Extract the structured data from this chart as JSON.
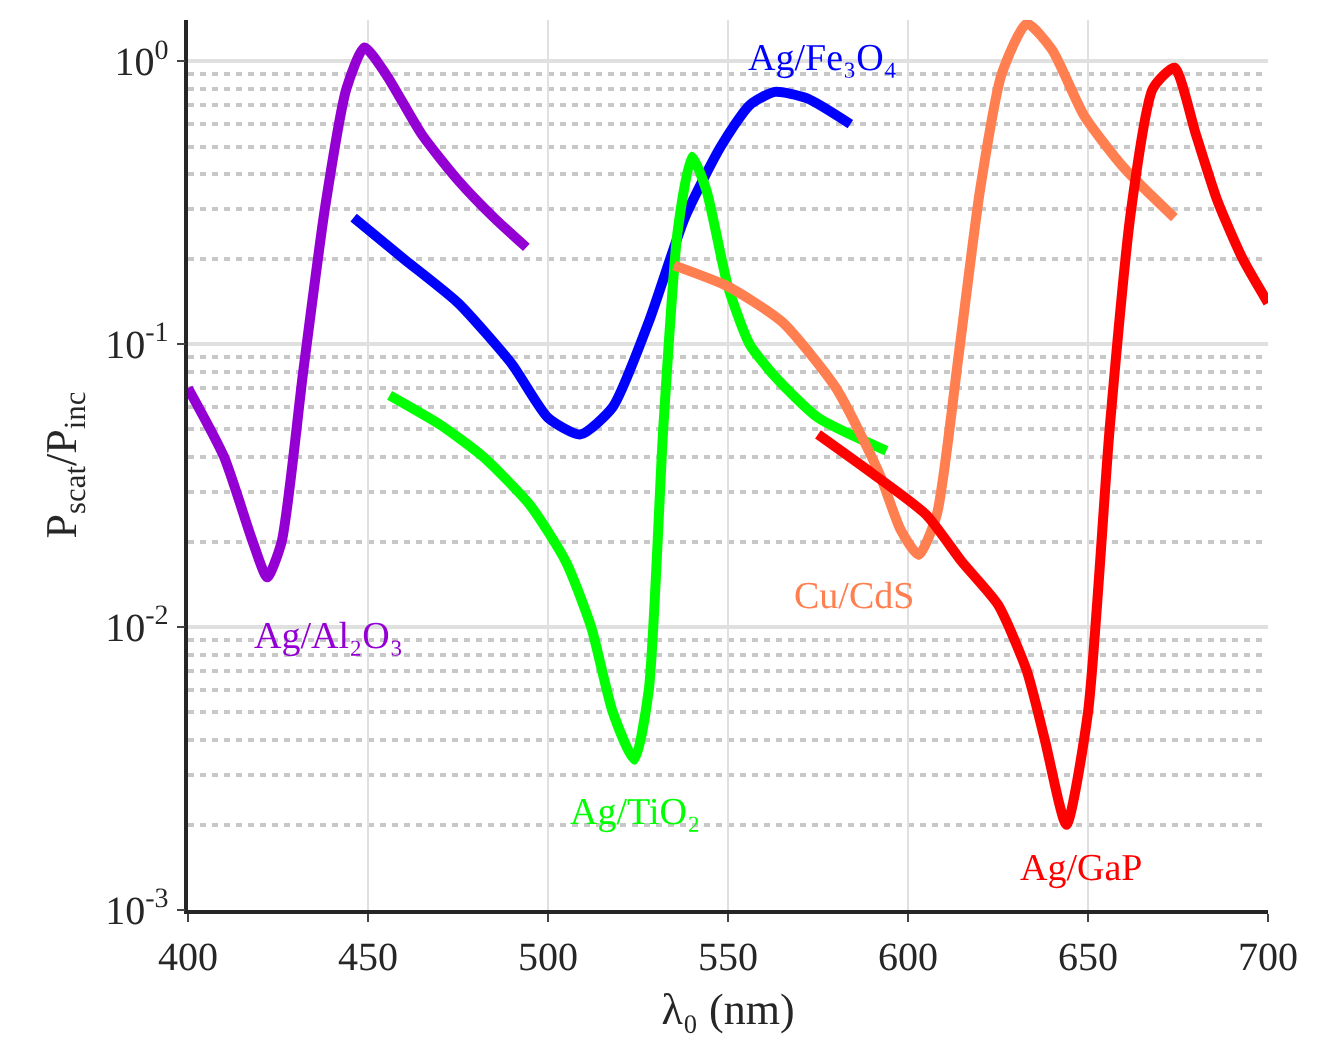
{
  "chart_data": {
    "type": "line",
    "xlabel": "λ₀ (nm)",
    "ylabel": "P$_{scat}$/P$_{inc}$",
    "log": "y",
    "grid": true,
    "legend": false,
    "marker": "none",
    "line_style": "solid",
    "xlim": [
      400,
      700
    ],
    "xticks": [
      400,
      450,
      500,
      550,
      600,
      650,
      700
    ],
    "ylim": [
      0.001,
      1.4
    ],
    "yticks": [
      {
        "value": 0.001,
        "label": "10$^{-3}$"
      },
      {
        "value": 0.01,
        "label": "10$^{-2}$"
      },
      {
        "value": 0.1,
        "label": "10$^{-1}$"
      },
      {
        "value": 1,
        "label": "10$^{0}$"
      }
    ],
    "series": [
      {
        "name": "Ag/Al₂O₃",
        "color": "#9400d3",
        "x": [
          400,
          410,
          418,
          422,
          426,
          432,
          438,
          444,
          449,
          455,
          465,
          475,
          485,
          494
        ],
        "values": [
          0.07,
          0.04,
          0.02,
          0.015,
          0.02,
          0.08,
          0.3,
          0.8,
          1.12,
          0.9,
          0.55,
          0.38,
          0.28,
          0.22
        ]
      },
      {
        "name": "Ag/Fe₃O₄",
        "color": "#0000ff",
        "x": [
          446,
          460,
          475,
          490,
          500,
          509,
          518,
          528,
          538,
          548,
          556,
          563,
          572,
          584
        ],
        "values": [
          0.28,
          0.2,
          0.14,
          0.085,
          0.055,
          0.048,
          0.06,
          0.12,
          0.28,
          0.5,
          0.7,
          0.78,
          0.74,
          0.6
        ]
      },
      {
        "name": "Ag/TiO₂",
        "color": "#00ff00",
        "x": [
          456,
          470,
          482,
          495,
          505,
          512,
          518,
          524,
          528,
          532,
          536,
          540,
          544,
          550,
          556,
          563,
          575,
          594
        ],
        "values": [
          0.066,
          0.052,
          0.04,
          0.027,
          0.017,
          0.01,
          0.005,
          0.0034,
          0.006,
          0.05,
          0.25,
          0.46,
          0.35,
          0.16,
          0.1,
          0.077,
          0.055,
          0.042
        ]
      },
      {
        "name": "Cu/CdS",
        "color": "#ff7f50",
        "x": [
          535,
          550,
          565,
          580,
          592,
          598,
          603,
          608,
          614,
          620,
          626,
          633,
          640,
          649,
          660,
          674
        ],
        "values": [
          0.19,
          0.16,
          0.12,
          0.07,
          0.035,
          0.022,
          0.018,
          0.025,
          0.09,
          0.35,
          0.9,
          1.36,
          1.1,
          0.64,
          0.42,
          0.28
        ]
      },
      {
        "name": "Ag/GaP",
        "color": "#ff0000",
        "x": [
          575,
          590,
          605,
          615,
          625,
          633,
          638,
          644,
          650,
          656,
          662,
          668,
          674,
          680,
          686,
          693,
          700
        ],
        "values": [
          0.048,
          0.035,
          0.025,
          0.017,
          0.012,
          0.007,
          0.004,
          0.002,
          0.005,
          0.05,
          0.3,
          0.8,
          0.95,
          0.55,
          0.32,
          0.2,
          0.14
        ]
      }
    ]
  }
}
